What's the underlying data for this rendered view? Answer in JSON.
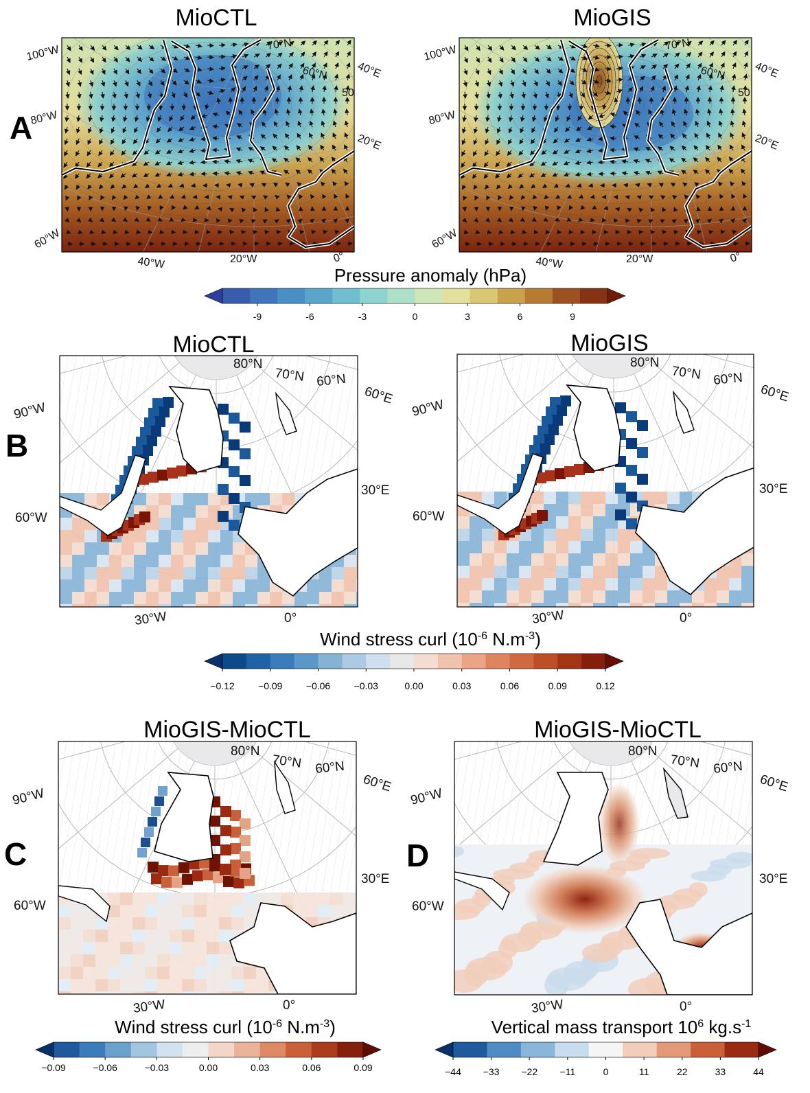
{
  "chart_data": [
    {
      "type": "heatmap",
      "panel": "A",
      "titles": [
        "MioCTL",
        "MioGIS"
      ],
      "variable": "Pressure anomaly (hPa)",
      "colorbar": {
        "title": "Pressure anomaly (hPa)",
        "ticks": [
          "-9",
          "-6",
          "-3",
          "0",
          "3",
          "6",
          "9"
        ],
        "tick_values": [
          -9,
          -6,
          -3,
          0,
          3,
          6,
          9
        ],
        "range": [
          -11,
          11
        ],
        "colors": [
          "#2a3f9e",
          "#3a5cae",
          "#3f75bb",
          "#4a8ec6",
          "#5aa5cc",
          "#6fbfd0",
          "#8dd3cf",
          "#aee0c9",
          "#cfe7b8",
          "#e2e09c",
          "#d9c673",
          "#c8a24d",
          "#b67a33",
          "#9e5120",
          "#863214",
          "#6e1b0c"
        ]
      },
      "lon_labels": [
        "40°W",
        "20°W",
        "0°"
      ],
      "lat_labels_left": [
        "100°W",
        "80°W",
        "60°W"
      ],
      "lat_labels_right": [
        "40°E",
        "20°E"
      ],
      "lat_labels_inner": [
        "70°N",
        "60°N",
        "50"
      ],
      "overlays": [
        "wind vectors",
        "land contour"
      ]
    },
    {
      "type": "heatmap",
      "panel": "B",
      "titles": [
        "MioCTL",
        "MioGIS"
      ],
      "colorbar": {
        "title_prefix": "Wind stress curl (10",
        "title_exp": "-6",
        "title_mid": " N.m",
        "title_exp2": "-3",
        "title_suffix": ")",
        "ticks": [
          "−0.12",
          "−0.09",
          "−0.06",
          "−0.03",
          "0.00",
          "0.03",
          "0.06",
          "0.09",
          "0.12"
        ],
        "tick_values": [
          -0.12,
          -0.09,
          -0.06,
          -0.03,
          0.0,
          0.03,
          0.06,
          0.09,
          0.12
        ],
        "colors": [
          "#08306b",
          "#0d4a8a",
          "#1f63a4",
          "#3a7dba",
          "#5b97c8",
          "#84b3d6",
          "#aacbe3",
          "#cfdfee",
          "#e8e8e8",
          "#f4dcd0",
          "#f0c3ad",
          "#e9a585",
          "#de855f",
          "#cf6a40",
          "#bd4e27",
          "#a33416",
          "#851f0c",
          "#670d04"
        ]
      },
      "lon_labels": [
        "30°W",
        "0°"
      ],
      "lat_labels_left": [
        "90°W",
        "60°W"
      ],
      "lat_labels_right": [
        "60°E",
        "30°E"
      ],
      "lat_labels_inner": [
        "80°N",
        "70°N",
        "60°N"
      ]
    },
    {
      "type": "heatmap",
      "panel": "C",
      "title": "MioGIS-MioCTL",
      "colorbar": {
        "title_prefix": "Wind stress curl (10",
        "title_exp": "-6",
        "title_mid": " N.m",
        "title_exp2": "-3",
        "title_suffix": ")",
        "ticks": [
          "−0.09",
          "−0.06",
          "−0.03",
          "0.00",
          "0.03",
          "0.06",
          "0.09"
        ],
        "tick_values": [
          -0.09,
          -0.06,
          -0.03,
          0.0,
          0.03,
          0.06,
          0.09
        ],
        "colors": [
          "#08306b",
          "#1f5a9e",
          "#3a7dba",
          "#6aa1cd",
          "#a3c6e0",
          "#d3e2ef",
          "#eeeeee",
          "#f3d6c7",
          "#eab39a",
          "#de8a64",
          "#c9603a",
          "#ab3b1d",
          "#86200c",
          "#5f0d04"
        ]
      },
      "lon_labels": [
        "30°W",
        "0°"
      ],
      "lat_labels_left": [
        "90°W",
        "60°W"
      ],
      "lat_labels_right": [
        "60°E",
        "30°E"
      ],
      "lat_labels_inner": [
        "80°N",
        "70°N",
        "60°N"
      ]
    },
    {
      "type": "heatmap",
      "panel": "D",
      "title": "MioGIS-MioCTL",
      "colorbar": {
        "title_prefix": "Vertical mass transport 10",
        "title_exp": "6",
        "title_suffix": " kg.s",
        "title_exp2": "-1",
        "ticks": [
          "−44",
          "−33",
          "−22",
          "−11",
          "0",
          "11",
          "22",
          "33",
          "44"
        ],
        "tick_values": [
          -44,
          -33,
          -22,
          -11,
          0,
          11,
          22,
          33,
          44
        ],
        "colors": [
          "#08306b",
          "#1f5a9e",
          "#4f8cc4",
          "#8ab6d9",
          "#c7dcec",
          "#f5f5f5",
          "#f2cdb9",
          "#e39a78",
          "#c9603a",
          "#9a2a12",
          "#5f0d04"
        ]
      },
      "lon_labels": [
        "30°W",
        "0°"
      ],
      "lat_labels_left": [
        "90°W",
        "60°W"
      ],
      "lat_labels_right": [
        "60°E",
        "30°E"
      ],
      "lat_labels_inner": [
        "80°N",
        "70°N",
        "60°N"
      ]
    }
  ],
  "panel_letters": [
    "A",
    "B",
    "C",
    "D"
  ]
}
